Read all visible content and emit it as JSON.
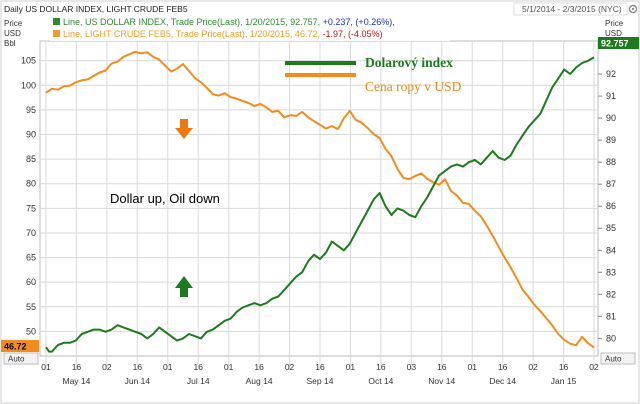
{
  "header": {
    "title": "Daily US DOLLAR INDEX, LIGHT CRUDE FEB5",
    "date_range": "5/1/2014 - 2/3/2015 (NYC)"
  },
  "legend": {
    "dollar_line": {
      "prefix": "Line, US DOLLAR INDEX, Trade Price(Last), 1/20/2015, 92.757,",
      "change": "+0.237, (+0.26%),"
    },
    "oil_line": {
      "prefix": "Line, LIGHT CRUDE FEB5, Trade Price(Last), 1/20/2015, 46.72,",
      "change": "-1.97, (-4.05%)"
    }
  },
  "axes": {
    "left_title": [
      "Price",
      "USD",
      "Bbl"
    ],
    "right_title": [
      "Price",
      "USD"
    ],
    "auto_left": "Auto",
    "auto_right": "Auto"
  },
  "annotations": {
    "dollar_label": "Dolarový index",
    "oil_label": "Cena ropy v USD",
    "center_text": "Dollar up, Oil down",
    "dollar_last": "92.757",
    "oil_last": "46.72"
  },
  "colors": {
    "dollar": "#1e7a1e",
    "oil": "#f28c1e",
    "legend_dollar": "#2e8b2e",
    "legend_oil": "#f39b2a",
    "negative": "#cc1111",
    "positive": "#1a33cc",
    "grid": "#d9d9d9"
  },
  "chart_data": {
    "type": "line",
    "title": "Daily US DOLLAR INDEX, LIGHT CRUDE FEB5",
    "x_dates": [
      "5/1",
      "5/16",
      "6/2",
      "6/16",
      "7/1",
      "7/16",
      "8/1",
      "8/15",
      "9/2",
      "9/16",
      "10/1",
      "10/16",
      "11/3",
      "11/17",
      "12/1",
      "12/16",
      "1/2",
      "1/16",
      "1/20"
    ],
    "x_ticks": [
      "01",
      "16",
      "02",
      "16",
      "01",
      "16",
      "01",
      "16",
      "02",
      "16",
      "01",
      "16",
      "03",
      "16",
      "01",
      "16",
      "02",
      "16",
      "02"
    ],
    "x_months": [
      "May 14",
      "Jun 14",
      "Jul 14",
      "Aug 14",
      "Sep 14",
      "Oct 14",
      "Nov 14",
      "Dec 14",
      "Jan 15"
    ],
    "left_axis": {
      "label": "Price USD Bbl",
      "ticks": [
        50,
        55,
        60,
        65,
        70,
        75,
        80,
        85,
        90,
        95,
        100,
        105
      ],
      "range": [
        45,
        109
      ]
    },
    "right_axis": {
      "label": "Price USD",
      "ticks": [
        80,
        81,
        82,
        83,
        84,
        85,
        86,
        87,
        88,
        89,
        90,
        91,
        92
      ],
      "range": [
        79.2,
        93.5
      ]
    },
    "series": [
      {
        "name": "US DOLLAR INDEX",
        "axis": "right",
        "last": 92.757,
        "points": [
          [
            0,
            79.6
          ],
          [
            1,
            79.4
          ],
          [
            2,
            79.4
          ],
          [
            4,
            79.7
          ],
          [
            6,
            79.8
          ],
          [
            8,
            79.8
          ],
          [
            10,
            79.9
          ],
          [
            12,
            80.2
          ],
          [
            14,
            80.3
          ],
          [
            16,
            80.4
          ],
          [
            18,
            80.4
          ],
          [
            20,
            80.3
          ],
          [
            22,
            80.4
          ],
          [
            24,
            80.6
          ],
          [
            26,
            80.5
          ],
          [
            28,
            80.4
          ],
          [
            30,
            80.3
          ],
          [
            32,
            80.2
          ],
          [
            34,
            80.0
          ],
          [
            36,
            80.2
          ],
          [
            38,
            80.5
          ],
          [
            40,
            80.3
          ],
          [
            42,
            80.1
          ],
          [
            44,
            79.9
          ],
          [
            46,
            80.0
          ],
          [
            48,
            80.2
          ],
          [
            50,
            80.1
          ],
          [
            52,
            80.0
          ],
          [
            54,
            80.3
          ],
          [
            56,
            80.4
          ],
          [
            58,
            80.6
          ],
          [
            60,
            80.8
          ],
          [
            62,
            80.9
          ],
          [
            64,
            81.2
          ],
          [
            66,
            81.4
          ],
          [
            68,
            81.5
          ],
          [
            70,
            81.6
          ],
          [
            72,
            81.5
          ],
          [
            74,
            81.6
          ],
          [
            76,
            81.8
          ],
          [
            78,
            81.9
          ],
          [
            80,
            82.2
          ],
          [
            82,
            82.5
          ],
          [
            84,
            82.8
          ],
          [
            86,
            83.0
          ],
          [
            88,
            83.5
          ],
          [
            90,
            83.8
          ],
          [
            92,
            83.6
          ],
          [
            94,
            83.9
          ],
          [
            96,
            84.4
          ],
          [
            98,
            84.2
          ],
          [
            100,
            84.0
          ],
          [
            102,
            84.3
          ],
          [
            104,
            84.8
          ],
          [
            106,
            85.3
          ],
          [
            108,
            85.8
          ],
          [
            110,
            86.3
          ],
          [
            112,
            86.6
          ],
          [
            114,
            86.0
          ],
          [
            116,
            85.6
          ],
          [
            118,
            85.9
          ],
          [
            120,
            85.8
          ],
          [
            122,
            85.6
          ],
          [
            124,
            85.5
          ],
          [
            126,
            86.0
          ],
          [
            128,
            86.4
          ],
          [
            130,
            86.9
          ],
          [
            132,
            87.4
          ],
          [
            134,
            87.6
          ],
          [
            136,
            87.8
          ],
          [
            138,
            87.9
          ],
          [
            140,
            87.8
          ],
          [
            142,
            88.0
          ],
          [
            144,
            88.1
          ],
          [
            146,
            87.9
          ],
          [
            148,
            88.2
          ],
          [
            150,
            88.5
          ],
          [
            152,
            88.2
          ],
          [
            154,
            88.1
          ],
          [
            156,
            88.3
          ],
          [
            158,
            88.8
          ],
          [
            160,
            89.2
          ],
          [
            162,
            89.6
          ],
          [
            164,
            89.9
          ],
          [
            166,
            90.2
          ],
          [
            168,
            90.8
          ],
          [
            170,
            91.4
          ],
          [
            172,
            91.8
          ],
          [
            174,
            92.2
          ],
          [
            176,
            92.0
          ],
          [
            178,
            92.3
          ],
          [
            180,
            92.5
          ],
          [
            182,
            92.6
          ],
          [
            184,
            92.757
          ]
        ]
      },
      {
        "name": "LIGHT CRUDE FEB5",
        "axis": "left",
        "last": 46.72,
        "points": [
          [
            0,
            98.5
          ],
          [
            2,
            99.3
          ],
          [
            4,
            99.1
          ],
          [
            6,
            99.8
          ],
          [
            8,
            99.9
          ],
          [
            10,
            100.6
          ],
          [
            12,
            101.0
          ],
          [
            14,
            101.2
          ],
          [
            16,
            101.9
          ],
          [
            18,
            102.6
          ],
          [
            20,
            103.0
          ],
          [
            22,
            104.4
          ],
          [
            24,
            104.8
          ],
          [
            26,
            105.8
          ],
          [
            28,
            106.3
          ],
          [
            30,
            106.8
          ],
          [
            32,
            106.5
          ],
          [
            34,
            106.7
          ],
          [
            36,
            105.8
          ],
          [
            38,
            105.2
          ],
          [
            40,
            104.0
          ],
          [
            42,
            102.8
          ],
          [
            44,
            103.4
          ],
          [
            46,
            104.3
          ],
          [
            48,
            102.9
          ],
          [
            50,
            101.5
          ],
          [
            52,
            100.6
          ],
          [
            54,
            99.5
          ],
          [
            56,
            98.2
          ],
          [
            58,
            97.9
          ],
          [
            60,
            98.4
          ],
          [
            62,
            97.6
          ],
          [
            64,
            97.3
          ],
          [
            66,
            96.8
          ],
          [
            68,
            96.4
          ],
          [
            70,
            95.8
          ],
          [
            72,
            96.2
          ],
          [
            74,
            95.5
          ],
          [
            76,
            94.6
          ],
          [
            78,
            94.8
          ],
          [
            80,
            93.5
          ],
          [
            82,
            93.9
          ],
          [
            84,
            93.8
          ],
          [
            86,
            94.6
          ],
          [
            88,
            93.5
          ],
          [
            90,
            92.7
          ],
          [
            92,
            92.0
          ],
          [
            94,
            91.2
          ],
          [
            96,
            91.7
          ],
          [
            98,
            91.1
          ],
          [
            100,
            93.3
          ],
          [
            102,
            94.8
          ],
          [
            104,
            93.0
          ],
          [
            106,
            92.4
          ],
          [
            108,
            91.3
          ],
          [
            110,
            90.1
          ],
          [
            112,
            89.3
          ],
          [
            114,
            87.1
          ],
          [
            116,
            85.6
          ],
          [
            118,
            83.0
          ],
          [
            120,
            81.2
          ],
          [
            122,
            80.9
          ],
          [
            124,
            81.6
          ],
          [
            126,
            82.1
          ],
          [
            128,
            81.0
          ],
          [
            130,
            80.3
          ],
          [
            132,
            79.8
          ],
          [
            134,
            80.9
          ],
          [
            136,
            78.5
          ],
          [
            138,
            77.6
          ],
          [
            140,
            76.1
          ],
          [
            142,
            75.9
          ],
          [
            144,
            74.5
          ],
          [
            146,
            73.4
          ],
          [
            148,
            71.5
          ],
          [
            150,
            69.4
          ],
          [
            152,
            67.2
          ],
          [
            154,
            65.0
          ],
          [
            156,
            63.0
          ],
          [
            158,
            60.8
          ],
          [
            160,
            58.5
          ],
          [
            162,
            57.0
          ],
          [
            164,
            55.4
          ],
          [
            166,
            54.1
          ],
          [
            168,
            52.7
          ],
          [
            170,
            51.2
          ],
          [
            172,
            49.5
          ],
          [
            174,
            48.3
          ],
          [
            176,
            47.5
          ],
          [
            178,
            47.2
          ],
          [
            180,
            48.9
          ],
          [
            182,
            47.6
          ],
          [
            184,
            46.72
          ]
        ]
      }
    ]
  }
}
